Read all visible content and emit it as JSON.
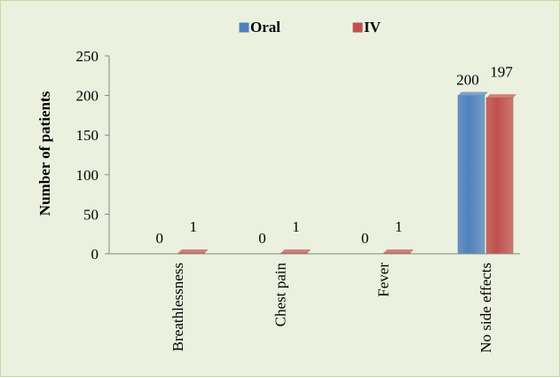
{
  "chart_data": {
    "type": "bar",
    "title": "",
    "xlabel": "",
    "ylabel": "Number of patients",
    "ylim": [
      0,
      250
    ],
    "yticks": [
      0,
      50,
      100,
      150,
      200,
      250
    ],
    "categories": [
      "Breathlessness",
      "Chest pain",
      "Fever",
      "No side effects"
    ],
    "series": [
      {
        "name": "Oral",
        "values": [
          0,
          0,
          0,
          200
        ],
        "color": "#4f81bd"
      },
      {
        "name": "IV",
        "values": [
          1,
          1,
          1,
          197
        ],
        "color": "#c0504d"
      }
    ],
    "legend_position": "top",
    "grid": false,
    "background_color": "#ebf1de",
    "style": "3d-bar"
  }
}
